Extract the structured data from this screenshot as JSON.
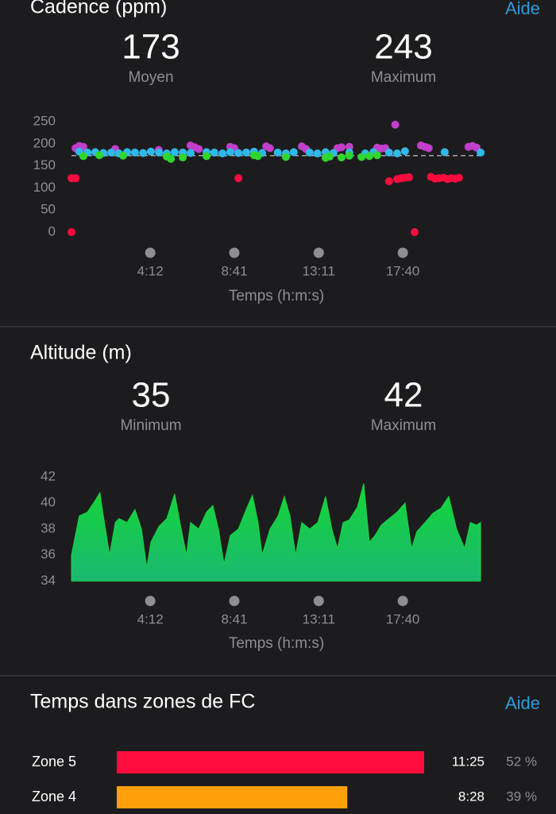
{
  "chart_data": [
    {
      "type": "scatter",
      "title": "Cadence (ppm)",
      "help": "Aide",
      "stats": [
        {
          "value": 173,
          "label": "Moyen"
        },
        {
          "value": 243,
          "label": "Maximum"
        }
      ],
      "x_label": "Temps (h:m:s)",
      "xlim": [
        0,
        1310
      ],
      "xticks": [
        {
          "value": 252,
          "label": "4:12"
        },
        {
          "value": 521,
          "label": "8:41"
        },
        {
          "value": 791,
          "label": "13:11"
        },
        {
          "value": 1060,
          "label": "17:40"
        }
      ],
      "ylim": [
        0,
        250
      ],
      "yticks": [
        0,
        50,
        100,
        150,
        200,
        250
      ],
      "series": [
        {
          "name": "magenta",
          "color": "#c13fca",
          "x": [
            13,
            25,
            38,
            140,
            279,
            381,
            394,
            407,
            508,
            521,
            623,
            635,
            737,
            750,
            851,
            864,
            889,
            978,
            991,
            1004,
            1036,
            1118,
            1131,
            1143,
            1270,
            1283,
            1296
          ],
          "values": [
            190,
            195,
            193,
            188,
            186,
            196,
            192,
            188,
            193,
            190,
            194,
            190,
            194,
            188,
            190,
            192,
            193,
            191,
            189,
            190,
            243,
            196,
            193,
            190,
            193,
            195,
            191
          ]
        },
        {
          "name": "cyan",
          "color": "#30b8e8",
          "x": [
            25,
            51,
            76,
            102,
            127,
            152,
            178,
            203,
            229,
            254,
            280,
            305,
            330,
            356,
            381,
            432,
            457,
            483,
            508,
            534,
            559,
            584,
            610,
            660,
            686,
            711,
            762,
            787,
            813,
            838,
            889,
            940,
            966,
            1016,
            1042,
            1067,
            1194,
            1309
          ],
          "values": [
            182,
            180,
            181,
            179,
            180,
            178,
            181,
            180,
            179,
            182,
            180,
            178,
            181,
            180,
            179,
            181,
            180,
            178,
            181,
            179,
            180,
            182,
            179,
            180,
            178,
            181,
            180,
            178,
            181,
            179,
            180,
            178,
            181,
            180,
            178,
            183,
            181,
            180
          ]
        },
        {
          "name": "green",
          "color": "#2fd62f",
          "x": [
            38,
            89,
            165,
            305,
            318,
            356,
            432,
            584,
            596,
            686,
            813,
            826,
            864,
            889,
            928,
            953,
            978
          ],
          "values": [
            172,
            174,
            173,
            171,
            166,
            169,
            172,
            174,
            172,
            170,
            168,
            171,
            169,
            173,
            170,
            172,
            174
          ]
        },
        {
          "name": "red",
          "color": "#ff0b3d",
          "x": [
            0,
            13,
            0,
            534,
            1016,
            1042,
            1055,
            1067,
            1080,
            1098,
            1150,
            1163,
            1176,
            1190,
            1203,
            1215,
            1228,
            1240
          ],
          "values": [
            122,
            122,
            0,
            122,
            115,
            120,
            122,
            123,
            124,
            0,
            125,
            121,
            122,
            123,
            120,
            122,
            121,
            123
          ]
        }
      ]
    },
    {
      "type": "area",
      "title": "Altitude (m)",
      "stats": [
        {
          "value": 35,
          "label": "Minimum"
        },
        {
          "value": 42,
          "label": "Maximum"
        }
      ],
      "x_label": "Temps (h:m:s)",
      "xlim": [
        0,
        1310
      ],
      "xticks": [
        {
          "value": 252,
          "label": "4:12"
        },
        {
          "value": 521,
          "label": "8:41"
        },
        {
          "value": 791,
          "label": "13:11"
        },
        {
          "value": 1060,
          "label": "17:40"
        }
      ],
      "ylim": [
        34,
        42
      ],
      "yticks": [
        34,
        36,
        38,
        40,
        42
      ],
      "color": "#19d43a",
      "x": [
        0,
        25,
        51,
        76,
        91,
        102,
        122,
        140,
        152,
        178,
        203,
        224,
        241,
        254,
        280,
        305,
        330,
        351,
        368,
        381,
        407,
        432,
        452,
        470,
        488,
        508,
        534,
        559,
        579,
        597,
        610,
        635,
        661,
        681,
        699,
        717,
        737,
        762,
        788,
        813,
        833,
        851,
        869,
        889,
        915,
        935,
        953,
        971,
        991,
        1016,
        1042,
        1067,
        1088,
        1105,
        1131,
        1156,
        1182,
        1207,
        1232,
        1258,
        1276,
        1296,
        1309
      ],
      "values": [
        36,
        39,
        39.3,
        40.2,
        40.8,
        39,
        36,
        38.5,
        38.8,
        38.5,
        39.5,
        38,
        35,
        37,
        38.2,
        38.8,
        40.7,
        38,
        36,
        38.5,
        38,
        39.3,
        39.8,
        38,
        35.3,
        37.5,
        38,
        39.5,
        40.6,
        38.5,
        36,
        38,
        39,
        40.5,
        39,
        36,
        38.5,
        38,
        38.5,
        40.5,
        38,
        36.5,
        38.5,
        38.7,
        39.7,
        41.5,
        37,
        37.5,
        38.3,
        38.8,
        39.3,
        40,
        36.5,
        37.8,
        38.5,
        39.2,
        39.6,
        40.5,
        38,
        36.5,
        38.5,
        38.3,
        38.5
      ]
    },
    {
      "type": "hbar",
      "title": "Temps dans zones de FC",
      "help": "Aide",
      "categories": [
        "Zone 5",
        "Zone 4"
      ],
      "colors": [
        "#ff0b3d",
        "#ff9f0a"
      ],
      "times": [
        "11:25",
        "8:28"
      ],
      "values": [
        52,
        39
      ],
      "value_labels": [
        "52 %",
        "39 %"
      ]
    }
  ]
}
